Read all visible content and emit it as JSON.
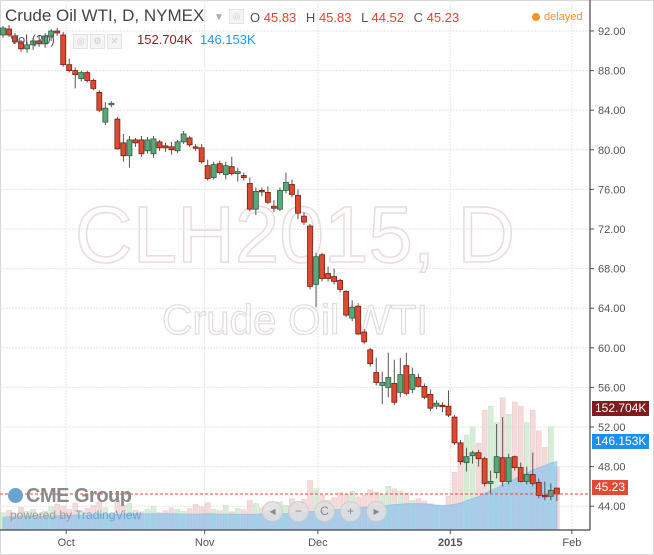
{
  "header": {
    "title": "Crude Oil WTI, D, NYMEX",
    "ohlc": {
      "o_label": "O",
      "o": "45.83",
      "h_label": "H",
      "h": "45.83",
      "l_label": "L",
      "l": "44.52",
      "c_label": "C",
      "c": "45.23"
    },
    "status": "delayed",
    "volume_indicator": "Vol (20)",
    "volume_value": "152.704K",
    "volume_ma_value": "146.153K"
  },
  "watermark": {
    "symbol": "CLH2015, D",
    "name": "Crude Oil WTI"
  },
  "branding": {
    "logo": "CME Group",
    "powered_by": "powered by ",
    "tradingview": "TradingView"
  },
  "nav_buttons": [
    {
      "icon": "arrow-left-icon",
      "glyph": "◂"
    },
    {
      "icon": "zoom-out-icon",
      "glyph": "−"
    },
    {
      "icon": "reset-icon",
      "glyph": "C"
    },
    {
      "icon": "zoom-in-icon",
      "glyph": "+"
    },
    {
      "icon": "arrow-right-icon",
      "glyph": "▸"
    }
  ],
  "price_labels": {
    "volume": "152.704K",
    "volume_ma": "146.153K",
    "last_price": "45.23"
  },
  "colors": {
    "up": "#5aa87a",
    "up_border": "#2e5f40",
    "down": "#dc4a30",
    "down_border": "#7a1d12",
    "last_price_line": "#e04a34",
    "ma_fill": "#8ec5ee",
    "vol_label": "#7d1d1d",
    "ma_label": "#1e8ef0",
    "delayed": "#f7931e"
  },
  "chart_data": {
    "type": "candlestick",
    "title": "Crude Oil WTI, D, NYMEX",
    "ylim": [
      42,
      94
    ],
    "y_ticks": [
      "92.00",
      "88.00",
      "84.00",
      "80.00",
      "76.00",
      "72.00",
      "68.00",
      "64.00",
      "60.00",
      "56.00",
      "52.00",
      "48.00",
      "44.00"
    ],
    "x_ticks": [
      {
        "label": "Oct",
        "bar": 10.5
      },
      {
        "label": "Nov",
        "bar": 33.5
      },
      {
        "label": "Dec",
        "bar": 52.3
      },
      {
        "label": "2015",
        "bar": 74.3
      },
      {
        "label": "Feb",
        "bar": 94.5
      }
    ],
    "grid": true,
    "last_price": 45.23,
    "volume_ma_period": 20,
    "ohlc": [
      [
        91.6,
        92.5,
        91.3,
        92.3
      ],
      [
        92.2,
        92.6,
        91.4,
        91.6
      ],
      [
        91.5,
        91.8,
        90.7,
        90.9
      ],
      [
        90.9,
        91.1,
        89.9,
        90.2
      ],
      [
        90.2,
        90.9,
        89.8,
        90.6
      ],
      [
        90.6,
        91.3,
        90.1,
        91.0
      ],
      [
        91.0,
        91.5,
        90.4,
        90.7
      ],
      [
        90.7,
        91.8,
        90.3,
        91.5
      ],
      [
        91.4,
        92.2,
        91.0,
        92.0
      ],
      [
        92.0,
        92.3,
        91.5,
        91.8
      ],
      [
        91.6,
        91.9,
        88.4,
        88.6
      ],
      [
        88.6,
        89.2,
        87.8,
        88.0
      ],
      [
        88.0,
        88.3,
        86.2,
        87.6
      ],
      [
        87.2,
        88.0,
        86.9,
        87.8
      ],
      [
        87.8,
        88.0,
        86.8,
        87.0
      ],
      [
        87.0,
        87.2,
        86.0,
        86.2
      ],
      [
        85.8,
        86.0,
        83.8,
        84.0
      ],
      [
        82.8,
        84.8,
        82.5,
        84.2
      ],
      [
        84.6,
        84.9,
        84.3,
        84.7
      ],
      [
        83.1,
        83.3,
        80.0,
        80.1
      ],
      [
        80.7,
        81.6,
        78.8,
        79.4
      ],
      [
        79.4,
        81.4,
        78.2,
        81.0
      ],
      [
        81.0,
        81.2,
        80.3,
        80.7
      ],
      [
        81.0,
        81.4,
        79.3,
        79.6
      ],
      [
        79.9,
        81.3,
        79.6,
        81.0
      ],
      [
        79.6,
        81.4,
        79.2,
        81.1
      ],
      [
        80.8,
        81.0,
        79.9,
        80.2
      ],
      [
        80.4,
        80.7,
        79.8,
        80.2
      ],
      [
        80.3,
        80.8,
        79.5,
        80.0
      ],
      [
        79.9,
        81.0,
        79.7,
        80.8
      ],
      [
        80.8,
        81.9,
        80.6,
        81.6
      ],
      [
        81.2,
        81.4,
        80.3,
        80.5
      ],
      [
        80.3,
        80.6,
        79.9,
        80.2
      ],
      [
        80.2,
        80.6,
        78.6,
        78.8
      ],
      [
        78.4,
        79.0,
        76.9,
        77.1
      ],
      [
        77.2,
        78.8,
        77.0,
        78.5
      ],
      [
        78.6,
        78.9,
        77.5,
        77.7
      ],
      [
        77.5,
        78.8,
        77.0,
        78.4
      ],
      [
        78.3,
        79.3,
        77.4,
        77.6
      ],
      [
        77.6,
        78.2,
        76.8,
        77.8
      ],
      [
        77.4,
        77.7,
        76.9,
        77.2
      ],
      [
        76.6,
        77.2,
        73.8,
        74.0
      ],
      [
        74.0,
        76.2,
        73.4,
        75.8
      ],
      [
        75.9,
        76.2,
        75.3,
        75.8
      ],
      [
        75.7,
        76.3,
        74.5,
        74.7
      ],
      [
        74.3,
        74.9,
        73.7,
        74.1
      ],
      [
        74.0,
        76.2,
        73.8,
        75.9
      ],
      [
        75.9,
        77.7,
        75.6,
        76.7
      ],
      [
        76.5,
        77.0,
        75.2,
        75.5
      ],
      [
        75.4,
        76.0,
        73.0,
        73.6
      ],
      [
        73.3,
        73.7,
        72.4,
        72.7
      ],
      [
        72.3,
        72.5,
        65.9,
        66.2
      ],
      [
        66.4,
        69.6,
        64.1,
        69.2
      ],
      [
        69.4,
        69.6,
        66.7,
        67.0
      ],
      [
        67.5,
        68.2,
        66.7,
        67.0
      ],
      [
        67.2,
        68.0,
        66.4,
        66.7
      ],
      [
        66.8,
        67.0,
        65.6,
        65.9
      ],
      [
        65.7,
        65.8,
        63.1,
        63.3
      ],
      [
        63.0,
        64.8,
        62.7,
        64.1
      ],
      [
        64.2,
        64.5,
        61.3,
        61.4
      ],
      [
        61.6,
        61.9,
        60.4,
        60.6
      ],
      [
        59.8,
        60.0,
        58.1,
        58.4
      ],
      [
        57.5,
        59.0,
        56.2,
        56.5
      ],
      [
        56.2,
        57.6,
        54.3,
        56.5
      ],
      [
        56.0,
        59.5,
        55.0,
        57.0
      ],
      [
        56.4,
        58.8,
        54.2,
        54.5
      ],
      [
        55.5,
        59.0,
        55.0,
        57.3
      ],
      [
        58.2,
        59.5,
        55.2,
        55.4
      ],
      [
        55.8,
        58.0,
        55.4,
        57.3
      ],
      [
        57.0,
        57.4,
        56.0,
        56.1
      ],
      [
        56.1,
        56.4,
        54.8,
        55.0
      ],
      [
        55.3,
        55.8,
        53.6,
        53.9
      ],
      [
        54.1,
        54.7,
        53.8,
        54.4
      ],
      [
        54.2,
        54.5,
        53.5,
        54.1
      ],
      [
        54.1,
        55.7,
        53.0,
        53.2
      ],
      [
        53.0,
        53.2,
        50.2,
        50.4
      ],
      [
        50.4,
        50.7,
        48.2,
        48.5
      ],
      [
        48.4,
        49.9,
        47.5,
        49.0
      ],
      [
        49.1,
        49.6,
        48.3,
        49.4
      ],
      [
        49.4,
        49.7,
        48.0,
        48.8
      ],
      [
        48.8,
        49.0,
        46.0,
        46.3
      ],
      [
        46.3,
        47.6,
        45.3,
        46.5
      ],
      [
        47.4,
        52.3,
        46.8,
        49.0
      ],
      [
        48.9,
        53.0,
        46.0,
        46.5
      ],
      [
        46.5,
        49.3,
        46.2,
        48.9
      ],
      [
        49.0,
        49.1,
        47.6,
        47.9
      ],
      [
        47.9,
        48.4,
        46.4,
        46.5
      ],
      [
        46.5,
        48.0,
        46.2,
        47.2
      ],
      [
        47.2,
        49.4,
        46.0,
        46.3
      ],
      [
        46.4,
        46.8,
        44.8,
        45.1
      ],
      [
        45.1,
        46.5,
        44.6,
        45.0
      ],
      [
        45.0,
        46.3,
        44.6,
        45.6
      ],
      [
        45.83,
        45.83,
        44.52,
        45.23
      ]
    ],
    "volume_k": [
      42,
      48,
      40,
      55,
      45,
      50,
      38,
      46,
      56,
      62,
      58,
      50,
      65,
      44,
      52,
      60,
      68,
      54,
      40,
      72,
      60,
      64,
      48,
      44,
      50,
      58,
      42,
      47,
      54,
      50,
      45,
      52,
      62,
      56,
      66,
      50,
      47,
      60,
      44,
      52,
      49,
      72,
      64,
      54,
      48,
      52,
      68,
      60,
      76,
      62,
      74,
      120,
      100,
      84,
      72,
      78,
      90,
      86,
      94,
      80,
      84,
      98,
      92,
      86,
      106,
      100,
      94,
      90,
      72,
      76,
      70,
      64,
      60,
      56,
      82,
      140,
      180,
      230,
      250,
      210,
      290,
      300,
      260,
      320,
      280,
      310,
      300,
      260,
      290,
      240,
      200,
      250,
      152.704
    ]
  }
}
